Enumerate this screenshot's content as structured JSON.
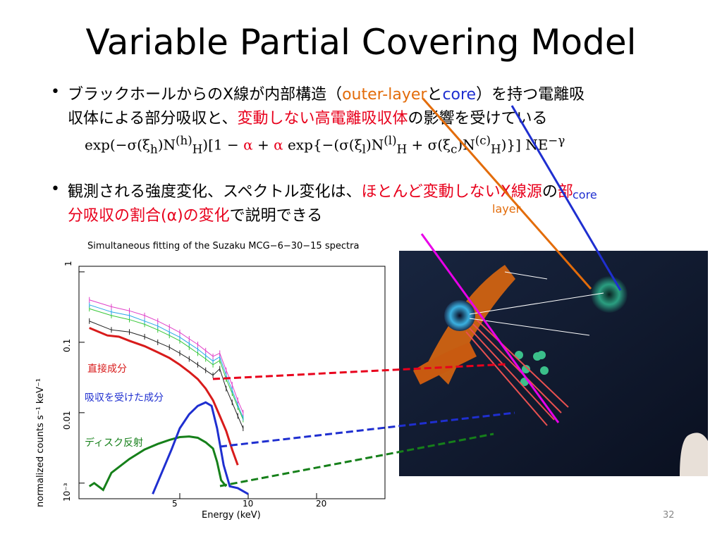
{
  "slide": {
    "title": "Variable Partial Covering Model",
    "page_number": "32",
    "bullet1": {
      "text1": "ブラックホールからのX線が内部構造（",
      "outer_layer": "outer-layer",
      "and": "と",
      "core": "core",
      "text2": "）を持つ電離吸",
      "text3": "収体による部分吸収と、",
      "red": "変動しない高電離吸収体",
      "text4": "の影響を受けている"
    },
    "formula": {
      "p1": "exp(−σ(ξ",
      "sub_h": "h",
      "p2": ")N",
      "sup1": "(h)",
      "subH1": "H",
      "p3": ")[1 − ",
      "alpha1": "α",
      "p4": " + ",
      "alpha2": "α",
      "p5": " exp{−(σ(ξ",
      "sub_l": "l",
      "p6": ")N",
      "sup2": "(l)",
      "subH2": "H",
      "p7": " + σ(ξ",
      "sub_c": "c",
      "p8": ")N",
      "sup3": "(c)",
      "subH3": "H",
      "p9": ")}] NE",
      "sup4": "−γ"
    },
    "bullet2": {
      "text1": "観測される強度変化、スペクトル変化は、",
      "red1": "ほとんど変動しないX線源",
      "text2": "の",
      "red2": "部",
      "red3": "分吸収の割合(α)の変化",
      "text3": "で説明できる"
    },
    "overlay_labels": {
      "core": "core",
      "layer": "layer"
    }
  },
  "chart_data": {
    "type": "line",
    "title": "Simultaneous fitting of the Suzaku MCG−6−30−15 spectra",
    "xlabel": "Energy (keV)",
    "ylabel": "normalized counts s⁻¹ keV⁻¹",
    "xscale": "log",
    "yscale": "log",
    "xlim": [
      1.8,
      40
    ],
    "ylim": [
      0.0006,
      1.2
    ],
    "x_ticks": [
      "5",
      "10",
      "20"
    ],
    "y_ticks": [
      "1",
      "0.1",
      "0.01",
      "10⁻³"
    ],
    "annotations": [
      "直接成分",
      "吸収を受けた成分",
      "ディスク反射"
    ],
    "series": [
      {
        "name": "直接成分",
        "color": "#d81b1b",
        "x": [
          2,
          2.4,
          2.7,
          3,
          3.5,
          4,
          4.5,
          5,
          5.5,
          6,
          6.5,
          7,
          7.5,
          8,
          8.5,
          9
        ],
        "y": [
          0.16,
          0.125,
          0.12,
          0.105,
          0.088,
          0.072,
          0.06,
          0.048,
          0.038,
          0.03,
          0.022,
          0.015,
          0.009,
          0.0055,
          0.003,
          0.0018
        ]
      },
      {
        "name": "吸収を受けた成分",
        "color": "#1f2fd0",
        "x": [
          3.8,
          4.2,
          4.6,
          5,
          5.5,
          6,
          6.5,
          6.9,
          7.3,
          7.8,
          8.3,
          9,
          10
        ],
        "y": [
          0.0007,
          0.0015,
          0.003,
          0.006,
          0.0095,
          0.0125,
          0.014,
          0.0125,
          0.006,
          0.0018,
          0.0009,
          0.00085,
          0.0007
        ]
      },
      {
        "name": "ディスク反射",
        "color": "#16801a",
        "x": [
          2,
          2.1,
          2.3,
          2.5,
          3,
          3.5,
          4,
          4.5,
          5,
          5.5,
          6,
          6.5,
          7,
          7.3,
          7.6,
          8
        ],
        "y": [
          0.0009,
          0.001,
          0.0008,
          0.0014,
          0.0022,
          0.003,
          0.0036,
          0.0041,
          0.0045,
          0.0046,
          0.0044,
          0.0038,
          0.0031,
          0.002,
          0.0011,
          0.0009
        ]
      },
      {
        "name": "",
        "color": "#222222",
        "x": [
          2,
          2.5,
          3,
          3.5,
          4,
          4.5,
          5,
          5.5,
          6,
          6.5,
          7,
          7.5,
          8,
          8.5,
          9,
          9.5
        ],
        "y": [
          0.2,
          0.15,
          0.14,
          0.12,
          0.1,
          0.085,
          0.07,
          0.058,
          0.048,
          0.04,
          0.034,
          0.042,
          0.022,
          0.014,
          0.009,
          0.006
        ]
      },
      {
        "name": "",
        "color": "#39c839",
        "x": [
          2,
          2.5,
          3,
          3.5,
          4,
          4.5,
          5,
          5.5,
          6,
          6.5,
          7,
          7.5,
          8,
          8.5,
          9,
          9.5
        ],
        "y": [
          0.3,
          0.24,
          0.21,
          0.18,
          0.15,
          0.125,
          0.105,
          0.085,
          0.07,
          0.058,
          0.048,
          0.055,
          0.03,
          0.019,
          0.012,
          0.008
        ]
      },
      {
        "name": "",
        "color": "#2aa5e8",
        "x": [
          2,
          2.5,
          3,
          3.5,
          4,
          4.5,
          5,
          5.5,
          6,
          6.5,
          7,
          7.5,
          8,
          8.5,
          9,
          9.5
        ],
        "y": [
          0.34,
          0.27,
          0.24,
          0.2,
          0.17,
          0.14,
          0.118,
          0.096,
          0.08,
          0.065,
          0.054,
          0.062,
          0.034,
          0.021,
          0.013,
          0.0085
        ]
      },
      {
        "name": "",
        "color": "#e040c8",
        "x": [
          2,
          2.5,
          3,
          3.5,
          4,
          4.5,
          5,
          5.5,
          6,
          6.5,
          7,
          7.5,
          8,
          8.5,
          9,
          9.5
        ],
        "y": [
          0.4,
          0.32,
          0.28,
          0.24,
          0.2,
          0.165,
          0.138,
          0.112,
          0.093,
          0.076,
          0.063,
          0.07,
          0.04,
          0.025,
          0.015,
          0.01
        ]
      }
    ]
  }
}
